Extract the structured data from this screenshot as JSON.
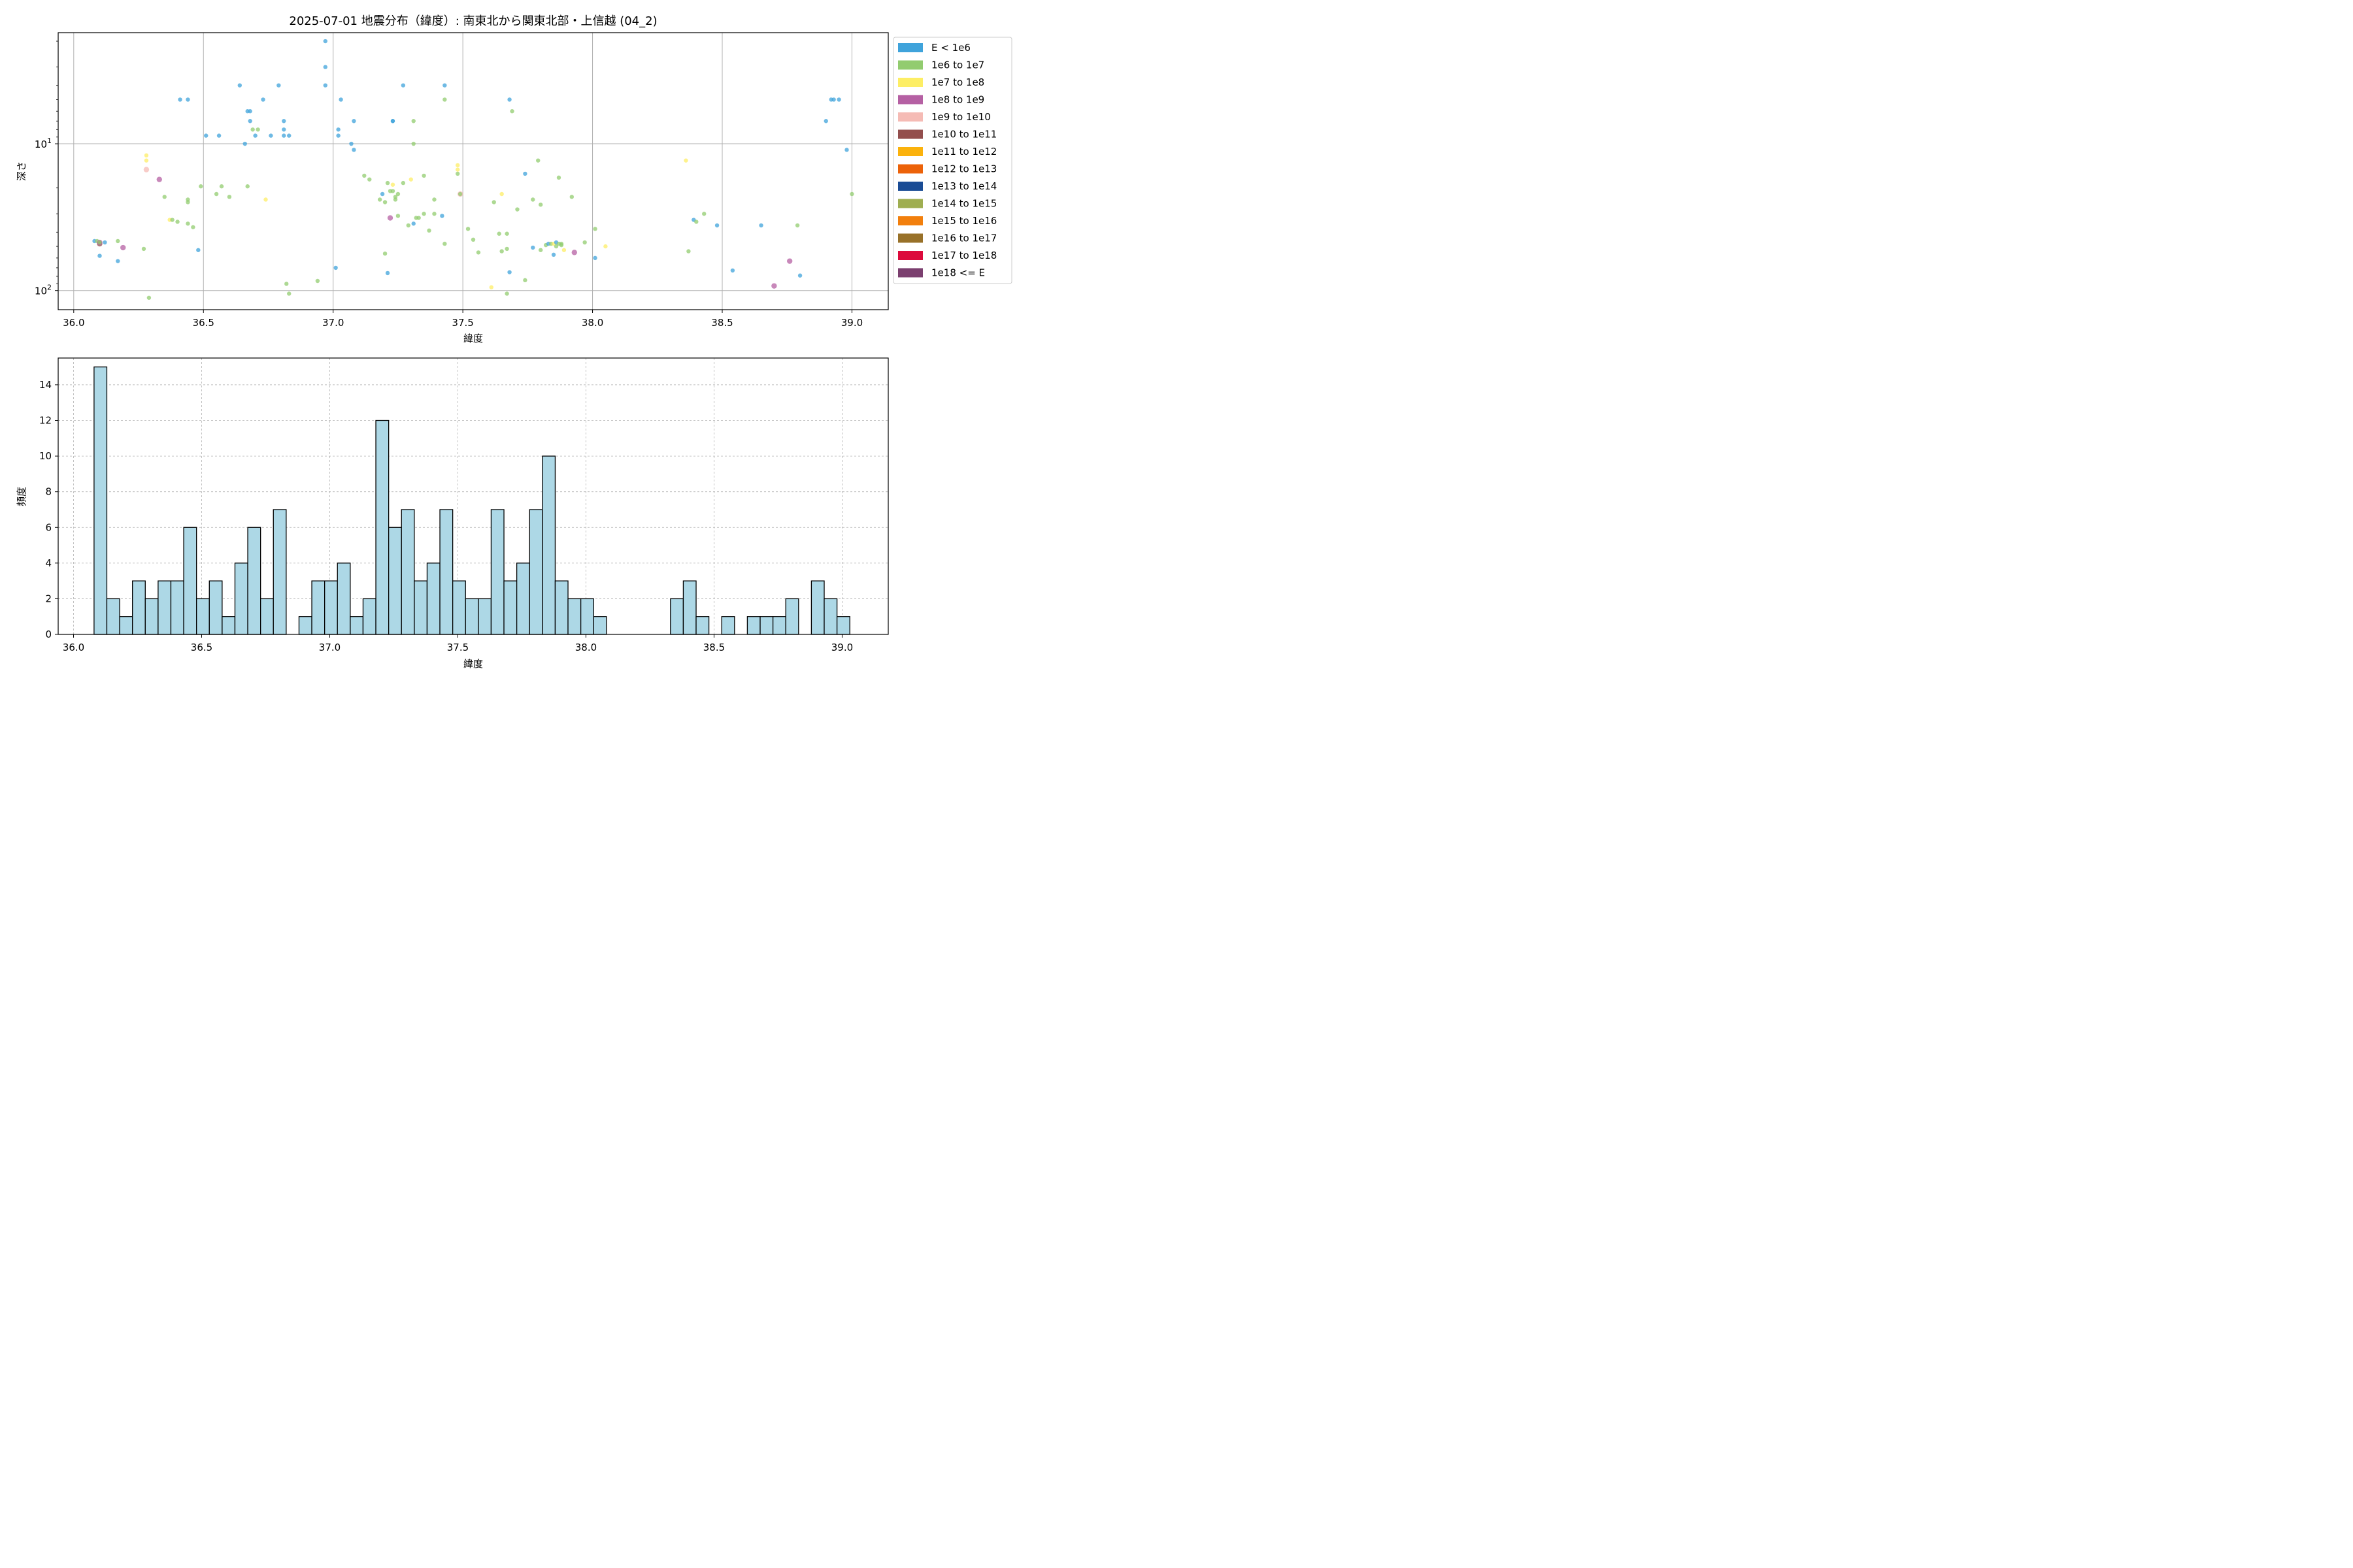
{
  "chart_data": [
    {
      "type": "scatter",
      "title": "2025-07-01 地震分布（緯度）: 南東北から関東北部・上信越 (04_2)",
      "xlabel": "緯度",
      "ylabel": "深さ",
      "xlim": [
        35.94,
        39.14
      ],
      "ylim_depth_log": [
        135,
        1.75
      ],
      "yscale": "log",
      "y_inverted": true,
      "grid": true,
      "legend_position": "outside-right",
      "x_ticks": [
        "36.0",
        "36.5",
        "37.0",
        "37.5",
        "38.0",
        "38.5",
        "39.0"
      ],
      "y_ticks": [
        {
          "value": 10,
          "base": "10",
          "exp": "1"
        },
        {
          "value": 100,
          "base": "10",
          "exp": "2"
        }
      ],
      "legend": [
        {
          "label": "E < 1e6",
          "color": "#3fa3db"
        },
        {
          "label": "1e6 to 1e7",
          "color": "#92cc6f"
        },
        {
          "label": "1e7 to 1e8",
          "color": "#fdee65"
        },
        {
          "label": "1e8 to 1e9",
          "color": "#b560a3"
        },
        {
          "label": "1e9 to 1e10",
          "color": "#f5bbb5"
        },
        {
          "label": "1e10 to 1e11",
          "color": "#934e4d"
        },
        {
          "label": "1e11 to 1e12",
          "color": "#fbb20c"
        },
        {
          "label": "1e12 to 1e13",
          "color": "#ec6209"
        },
        {
          "label": "1e13 to 1e14",
          "color": "#1a4c95"
        },
        {
          "label": "1e14 to 1e15",
          "color": "#9fae51"
        },
        {
          "label": "1e15 to 1e16",
          "color": "#f27f0c"
        },
        {
          "label": "1e16 to 1e17",
          "color": "#987129"
        },
        {
          "label": "1e17 to 1e18",
          "color": "#dc0a3c"
        },
        {
          "label": "1e18 <= E",
          "color": "#7b3f6f"
        }
      ],
      "points": [
        {
          "x": 36.08,
          "y": 46,
          "c": 0
        },
        {
          "x": 36.09,
          "y": 46,
          "c": 1
        },
        {
          "x": 36.1,
          "y": 47,
          "c": 2
        },
        {
          "x": 36.1,
          "y": 48,
          "c": 5
        },
        {
          "x": 36.1,
          "y": 47,
          "c": 3
        },
        {
          "x": 36.1,
          "y": 47,
          "c": 1
        },
        {
          "x": 36.12,
          "y": 47,
          "c": 0
        },
        {
          "x": 36.1,
          "y": 58,
          "c": 0
        },
        {
          "x": 36.17,
          "y": 46,
          "c": 1
        },
        {
          "x": 36.19,
          "y": 51,
          "c": 3
        },
        {
          "x": 36.17,
          "y": 63,
          "c": 0
        },
        {
          "x": 36.27,
          "y": 52,
          "c": 1
        },
        {
          "x": 36.29,
          "y": 112,
          "c": 1
        },
        {
          "x": 36.28,
          "y": 12,
          "c": 2
        },
        {
          "x": 36.28,
          "y": 13,
          "c": 2
        },
        {
          "x": 36.28,
          "y": 15,
          "c": 4
        },
        {
          "x": 36.33,
          "y": 17.5,
          "c": 3
        },
        {
          "x": 36.35,
          "y": 23,
          "c": 1
        },
        {
          "x": 36.37,
          "y": 33,
          "c": 2
        },
        {
          "x": 36.38,
          "y": 33,
          "c": 1
        },
        {
          "x": 36.4,
          "y": 34,
          "c": 1
        },
        {
          "x": 36.44,
          "y": 25,
          "c": 1
        },
        {
          "x": 36.44,
          "y": 24,
          "c": 1
        },
        {
          "x": 36.44,
          "y": 35,
          "c": 1
        },
        {
          "x": 36.46,
          "y": 37,
          "c": 1
        },
        {
          "x": 36.41,
          "y": 5,
          "c": 0
        },
        {
          "x": 36.44,
          "y": 5,
          "c": 0
        },
        {
          "x": 36.48,
          "y": 53,
          "c": 0
        },
        {
          "x": 36.49,
          "y": 19.5,
          "c": 1
        },
        {
          "x": 36.51,
          "y": 8.8,
          "c": 0
        },
        {
          "x": 36.56,
          "y": 8.8,
          "c": 0
        },
        {
          "x": 36.55,
          "y": 22,
          "c": 1
        },
        {
          "x": 36.57,
          "y": 19.5,
          "c": 1
        },
        {
          "x": 36.6,
          "y": 23,
          "c": 1
        },
        {
          "x": 36.64,
          "y": 4,
          "c": 0
        },
        {
          "x": 36.67,
          "y": 6,
          "c": 0
        },
        {
          "x": 36.68,
          "y": 6,
          "c": 0
        },
        {
          "x": 36.68,
          "y": 7,
          "c": 0
        },
        {
          "x": 36.66,
          "y": 10,
          "c": 0
        },
        {
          "x": 36.69,
          "y": 8,
          "c": 1
        },
        {
          "x": 36.7,
          "y": 8.8,
          "c": 0
        },
        {
          "x": 36.71,
          "y": 8,
          "c": 1
        },
        {
          "x": 36.73,
          "y": 5,
          "c": 0
        },
        {
          "x": 36.67,
          "y": 19.5,
          "c": 1
        },
        {
          "x": 36.74,
          "y": 24,
          "c": 2
        },
        {
          "x": 36.76,
          "y": 8.8,
          "c": 0
        },
        {
          "x": 36.79,
          "y": 4,
          "c": 0
        },
        {
          "x": 36.81,
          "y": 7,
          "c": 0
        },
        {
          "x": 36.81,
          "y": 8,
          "c": 0
        },
        {
          "x": 36.81,
          "y": 8.8,
          "c": 0
        },
        {
          "x": 36.83,
          "y": 8.8,
          "c": 0
        },
        {
          "x": 36.82,
          "y": 90,
          "c": 1
        },
        {
          "x": 36.83,
          "y": 105,
          "c": 1
        },
        {
          "x": 36.94,
          "y": 86,
          "c": 1
        },
        {
          "x": 36.97,
          "y": 2,
          "c": 0
        },
        {
          "x": 36.97,
          "y": 3,
          "c": 0
        },
        {
          "x": 36.97,
          "y": 4,
          "c": 0
        },
        {
          "x": 37.01,
          "y": 70,
          "c": 0
        },
        {
          "x": 37.02,
          "y": 8,
          "c": 0
        },
        {
          "x": 37.02,
          "y": 8.8,
          "c": 0
        },
        {
          "x": 37.03,
          "y": 5,
          "c": 0
        },
        {
          "x": 37.07,
          "y": 10,
          "c": 0
        },
        {
          "x": 37.08,
          "y": 11,
          "c": 0
        },
        {
          "x": 37.08,
          "y": 7,
          "c": 0
        },
        {
          "x": 37.12,
          "y": 16.5,
          "c": 1
        },
        {
          "x": 37.14,
          "y": 17.5,
          "c": 1
        },
        {
          "x": 37.18,
          "y": 24,
          "c": 1
        },
        {
          "x": 37.19,
          "y": 22,
          "c": 0
        },
        {
          "x": 37.2,
          "y": 25,
          "c": 1
        },
        {
          "x": 37.2,
          "y": 56,
          "c": 1
        },
        {
          "x": 37.21,
          "y": 18.5,
          "c": 1
        },
        {
          "x": 37.21,
          "y": 76,
          "c": 0
        },
        {
          "x": 37.22,
          "y": 32,
          "c": 3
        },
        {
          "x": 37.22,
          "y": 21,
          "c": 1
        },
        {
          "x": 37.23,
          "y": 21,
          "c": 1
        },
        {
          "x": 37.23,
          "y": 19,
          "c": 2
        },
        {
          "x": 37.24,
          "y": 23,
          "c": 1
        },
        {
          "x": 37.25,
          "y": 22,
          "c": 1
        },
        {
          "x": 37.24,
          "y": 24,
          "c": 1
        },
        {
          "x": 37.23,
          "y": 7,
          "c": 0
        },
        {
          "x": 37.23,
          "y": 7,
          "c": 0
        },
        {
          "x": 37.25,
          "y": 31,
          "c": 1
        },
        {
          "x": 37.27,
          "y": 18.5,
          "c": 1
        },
        {
          "x": 37.27,
          "y": 4,
          "c": 0
        },
        {
          "x": 37.29,
          "y": 36,
          "c": 1
        },
        {
          "x": 37.3,
          "y": 17.5,
          "c": 2
        },
        {
          "x": 37.31,
          "y": 7,
          "c": 1
        },
        {
          "x": 37.31,
          "y": 10,
          "c": 1
        },
        {
          "x": 37.31,
          "y": 35,
          "c": 0
        },
        {
          "x": 37.32,
          "y": 32,
          "c": 1
        },
        {
          "x": 37.33,
          "y": 32,
          "c": 1
        },
        {
          "x": 37.35,
          "y": 30,
          "c": 1
        },
        {
          "x": 37.35,
          "y": 16.5,
          "c": 1
        },
        {
          "x": 37.37,
          "y": 39,
          "c": 1
        },
        {
          "x": 37.39,
          "y": 24,
          "c": 1
        },
        {
          "x": 37.39,
          "y": 30,
          "c": 1
        },
        {
          "x": 37.42,
          "y": 31,
          "c": 0
        },
        {
          "x": 37.43,
          "y": 48,
          "c": 1
        },
        {
          "x": 37.43,
          "y": 5,
          "c": 1
        },
        {
          "x": 37.43,
          "y": 4,
          "c": 0
        },
        {
          "x": 37.48,
          "y": 14,
          "c": 2
        },
        {
          "x": 37.48,
          "y": 15,
          "c": 2
        },
        {
          "x": 37.48,
          "y": 16,
          "c": 1
        },
        {
          "x": 37.49,
          "y": 22,
          "c": 4
        },
        {
          "x": 37.49,
          "y": 22,
          "c": 1
        },
        {
          "x": 37.52,
          "y": 38,
          "c": 1
        },
        {
          "x": 37.54,
          "y": 45,
          "c": 1
        },
        {
          "x": 37.56,
          "y": 55,
          "c": 1
        },
        {
          "x": 37.61,
          "y": 95,
          "c": 2
        },
        {
          "x": 37.62,
          "y": 25,
          "c": 1
        },
        {
          "x": 37.64,
          "y": 41,
          "c": 1
        },
        {
          "x": 37.65,
          "y": 54,
          "c": 1
        },
        {
          "x": 37.65,
          "y": 22,
          "c": 2
        },
        {
          "x": 37.67,
          "y": 41,
          "c": 1
        },
        {
          "x": 37.67,
          "y": 52,
          "c": 1
        },
        {
          "x": 37.68,
          "y": 75,
          "c": 0
        },
        {
          "x": 37.68,
          "y": 5,
          "c": 0
        },
        {
          "x": 37.67,
          "y": 105,
          "c": 1
        },
        {
          "x": 37.69,
          "y": 6,
          "c": 1
        },
        {
          "x": 37.71,
          "y": 28,
          "c": 1
        },
        {
          "x": 37.74,
          "y": 16,
          "c": 0
        },
        {
          "x": 37.74,
          "y": 85,
          "c": 1
        },
        {
          "x": 37.77,
          "y": 24,
          "c": 1
        },
        {
          "x": 37.77,
          "y": 51,
          "c": 0
        },
        {
          "x": 37.79,
          "y": 13,
          "c": 1
        },
        {
          "x": 37.8,
          "y": 26,
          "c": 1
        },
        {
          "x": 37.8,
          "y": 53,
          "c": 1
        },
        {
          "x": 37.82,
          "y": 49,
          "c": 1
        },
        {
          "x": 37.83,
          "y": 48,
          "c": 0
        },
        {
          "x": 37.84,
          "y": 48,
          "c": 1
        },
        {
          "x": 37.85,
          "y": 48,
          "c": 2
        },
        {
          "x": 37.85,
          "y": 57,
          "c": 0
        },
        {
          "x": 37.86,
          "y": 50,
          "c": 1
        },
        {
          "x": 37.86,
          "y": 47,
          "c": 0
        },
        {
          "x": 37.87,
          "y": 48,
          "c": 1
        },
        {
          "x": 37.87,
          "y": 17,
          "c": 1
        },
        {
          "x": 37.88,
          "y": 49,
          "c": 1
        },
        {
          "x": 37.88,
          "y": 48,
          "c": 1
        },
        {
          "x": 37.89,
          "y": 53,
          "c": 2
        },
        {
          "x": 37.92,
          "y": 23,
          "c": 1
        },
        {
          "x": 37.93,
          "y": 55,
          "c": 3
        },
        {
          "x": 37.97,
          "y": 47,
          "c": 1
        },
        {
          "x": 38.01,
          "y": 38,
          "c": 1
        },
        {
          "x": 38.01,
          "y": 60,
          "c": 0
        },
        {
          "x": 38.05,
          "y": 50,
          "c": 2
        },
        {
          "x": 38.36,
          "y": 13,
          "c": 2
        },
        {
          "x": 38.37,
          "y": 54,
          "c": 1
        },
        {
          "x": 38.39,
          "y": 33,
          "c": 0
        },
        {
          "x": 38.4,
          "y": 34,
          "c": 1
        },
        {
          "x": 38.43,
          "y": 30,
          "c": 1
        },
        {
          "x": 38.48,
          "y": 36,
          "c": 0
        },
        {
          "x": 38.54,
          "y": 73,
          "c": 0
        },
        {
          "x": 38.65,
          "y": 36,
          "c": 0
        },
        {
          "x": 38.7,
          "y": 93,
          "c": 3
        },
        {
          "x": 38.76,
          "y": 63,
          "c": 3
        },
        {
          "x": 38.79,
          "y": 36,
          "c": 1
        },
        {
          "x": 38.8,
          "y": 79,
          "c": 0
        },
        {
          "x": 38.9,
          "y": 7,
          "c": 0
        },
        {
          "x": 38.92,
          "y": 5,
          "c": 0
        },
        {
          "x": 38.93,
          "y": 5,
          "c": 0
        },
        {
          "x": 38.95,
          "y": 5,
          "c": 0
        },
        {
          "x": 38.98,
          "y": 11,
          "c": 0
        },
        {
          "x": 39.0,
          "y": 22,
          "c": 1
        }
      ]
    },
    {
      "type": "bar",
      "title": "",
      "xlabel": "緯度",
      "ylabel": "頻度",
      "xlim": [
        35.94,
        39.18
      ],
      "ylim": [
        0,
        15.5
      ],
      "grid": true,
      "bin_start": 36.08,
      "bin_width": 0.05,
      "x_ticks": [
        "36.0",
        "36.5",
        "37.0",
        "37.5",
        "38.0",
        "38.5",
        "39.0"
      ],
      "y_ticks": [
        "0",
        "2",
        "4",
        "6",
        "8",
        "10",
        "12",
        "14"
      ],
      "bar_color": "#add8e6",
      "values": [
        15,
        2,
        1,
        3,
        2,
        3,
        3,
        6,
        2,
        3,
        1,
        4,
        6,
        2,
        7,
        0,
        1,
        3,
        3,
        4,
        1,
        2,
        12,
        6,
        7,
        3,
        4,
        7,
        3,
        2,
        2,
        7,
        3,
        4,
        7,
        10,
        3,
        2,
        2,
        1,
        0,
        0,
        0,
        0,
        0,
        2,
        3,
        1,
        0,
        1,
        0,
        1,
        1,
        1,
        2,
        0,
        3,
        2,
        1
      ]
    }
  ]
}
